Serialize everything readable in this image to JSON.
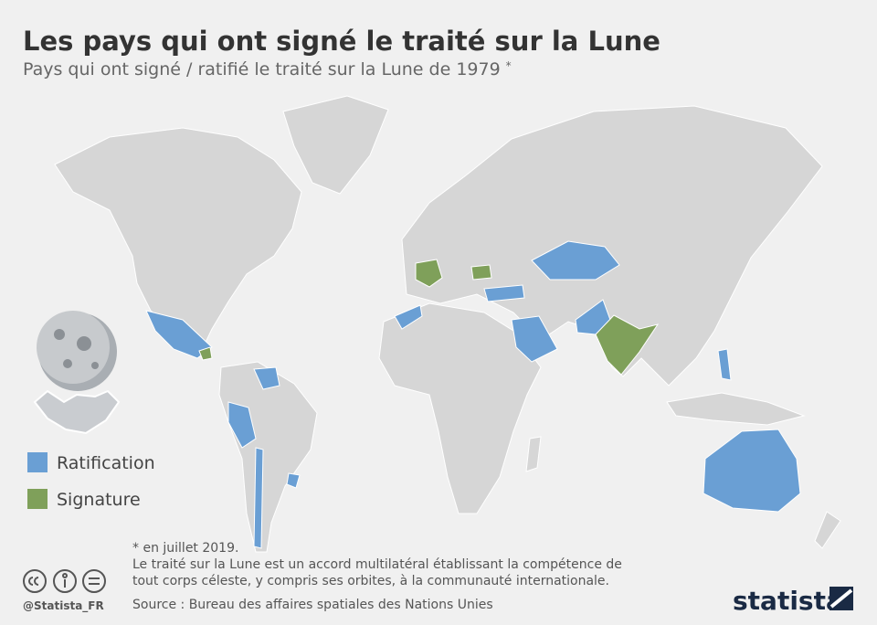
{
  "header": {
    "title": "Les pays qui ont signé le traité sur la Lune",
    "subtitle": "Pays qui ont signé / ratifié le traité sur la Lune de 1979",
    "subtitle_mark": "*"
  },
  "legend": [
    {
      "label": "Ratification",
      "color": "#6a9fd4"
    },
    {
      "label": "Signature",
      "color": "#7fa05a"
    }
  ],
  "footer": {
    "note": "* en juillet 2019.",
    "description": [
      "Le traité sur la Lune est un accord multilatéral établissant la compétence de",
      "tout corps céleste, y compris ses orbites, à la communauté internationale."
    ],
    "source": "Source : Bureau des affaires spatiales des Nations Unies",
    "handle": "@Statista_FR",
    "brand": "statista"
  }
}
